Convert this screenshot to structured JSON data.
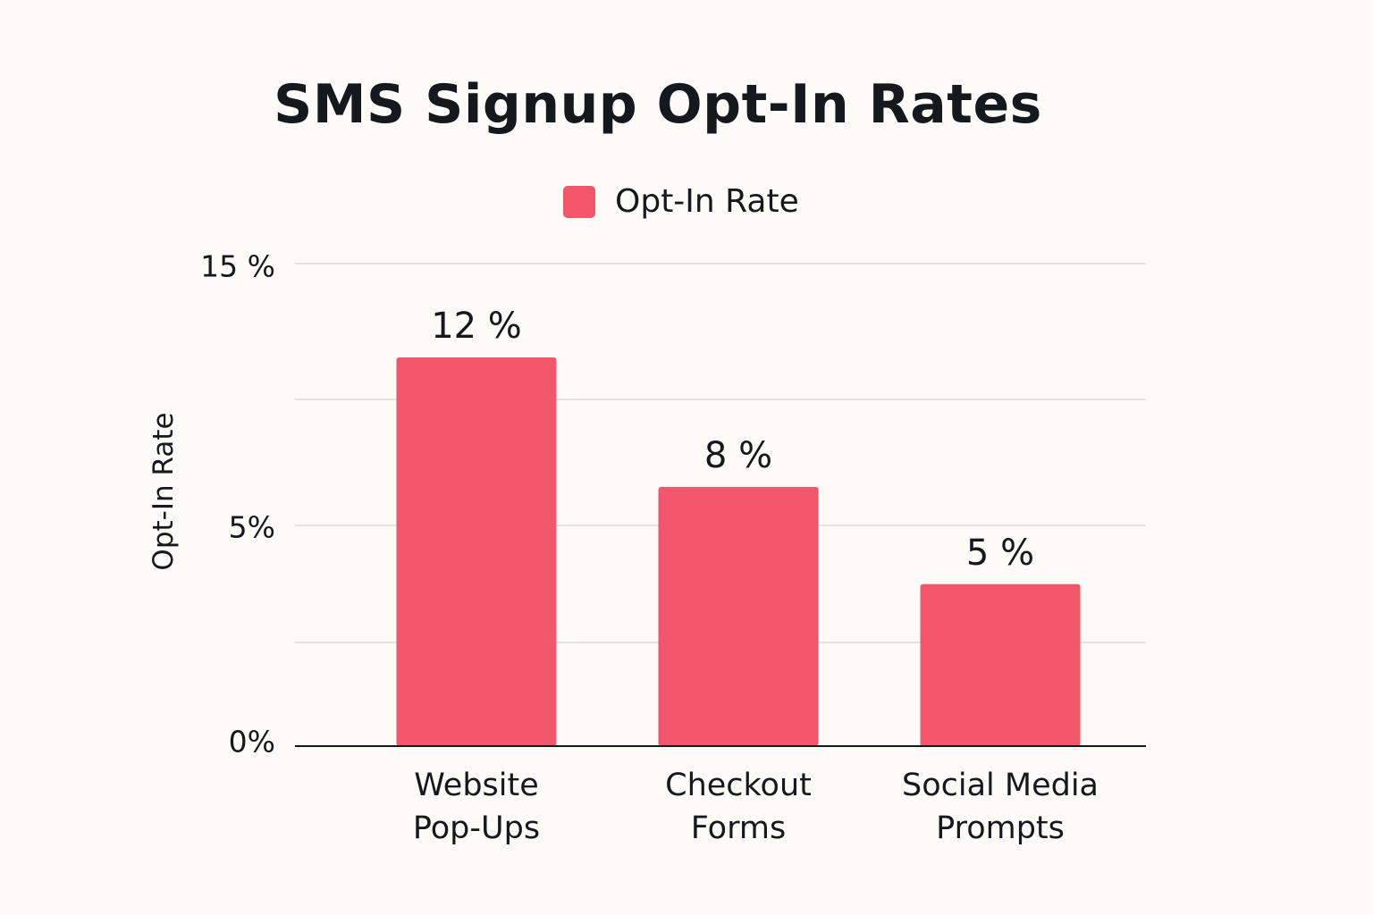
{
  "chart_data": {
    "type": "bar",
    "title": "SMS Signup Opt-In Rates",
    "ylabel": "Opt-In Rate",
    "xlabel": "",
    "legend": {
      "entries": [
        "Opt-In Rate"
      ],
      "placement": "top-center"
    },
    "categories": [
      [
        "Website",
        "Pop-Ups"
      ],
      [
        "Checkout",
        "Forms"
      ],
      [
        "Social Media",
        "Prompts"
      ]
    ],
    "series": [
      {
        "name": "Opt-In Rate",
        "values": [
          12,
          8,
          5
        ],
        "color": "#f2566b"
      }
    ],
    "data_labels": [
      "12 %",
      "8 %",
      "5 %"
    ],
    "y_ticks": [
      {
        "value": 15,
        "label": "15 %"
      },
      {
        "value": 5,
        "label": "5%"
      },
      {
        "value": 0,
        "label": "0%"
      }
    ],
    "ylim": [
      0,
      15
    ],
    "grid": true,
    "colors": {
      "bar": "#f2566b",
      "background": "#fcfbf7",
      "grid": "#d9d9d6",
      "axis": "#15181d"
    }
  }
}
